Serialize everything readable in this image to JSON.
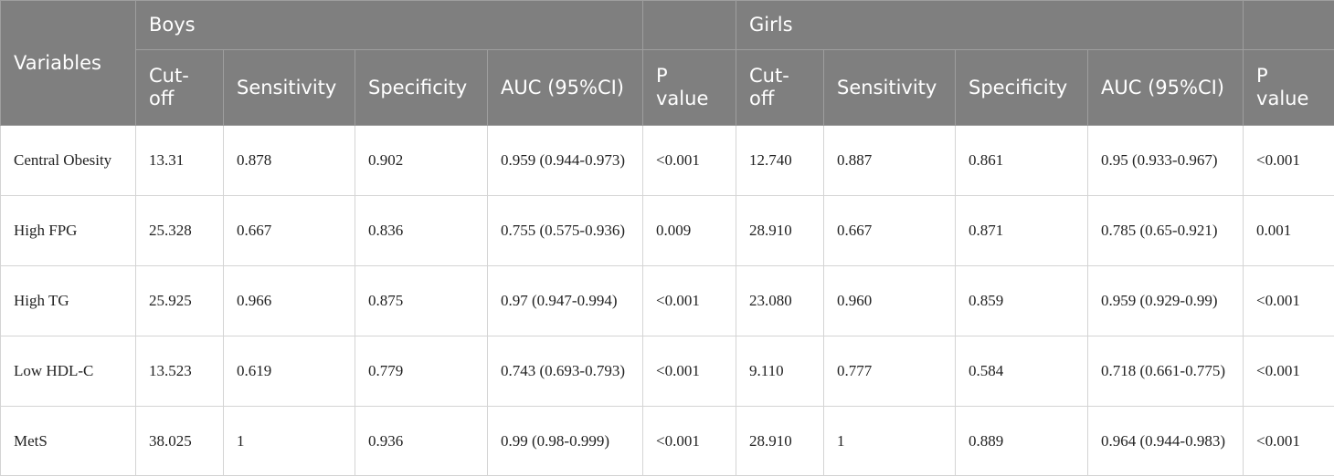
{
  "table": {
    "header": {
      "variables": "Variables",
      "group_boys": "Boys",
      "group_girls": "Girls",
      "columns": [
        "Cut-off",
        "Sensitivity",
        "Specificity",
        "AUC (95%CI)",
        "P value"
      ]
    },
    "rows": [
      {
        "variable": "Central Obesity",
        "boys": [
          "13.31",
          "0.878",
          "0.902",
          "0.959 (0.944-0.973)",
          "<0.001"
        ],
        "girls": [
          "12.740",
          "0.887",
          "0.861",
          "0.95 (0.933-0.967)",
          "<0.001"
        ]
      },
      {
        "variable": "High FPG",
        "boys": [
          "25.328",
          "0.667",
          "0.836",
          "0.755 (0.575-0.936)",
          "0.009"
        ],
        "girls": [
          "28.910",
          "0.667",
          "0.871",
          "0.785 (0.65-0.921)",
          "0.001"
        ]
      },
      {
        "variable": "High TG",
        "boys": [
          "25.925",
          "0.966",
          "0.875",
          "0.97 (0.947-0.994)",
          "<0.001"
        ],
        "girls": [
          "23.080",
          "0.960",
          "0.859",
          "0.959 (0.929-0.99)",
          "<0.001"
        ]
      },
      {
        "variable": "Low HDL-C",
        "boys": [
          "13.523",
          "0.619",
          "0.779",
          "0.743 (0.693-0.793)",
          "<0.001"
        ],
        "girls": [
          "9.110",
          "0.777",
          "0.584",
          "0.718 (0.661-0.775)",
          "<0.001"
        ]
      },
      {
        "variable": "MetS",
        "boys": [
          "38.025",
          "1",
          "0.936",
          "0.99 (0.98-0.999)",
          "<0.001"
        ],
        "girls": [
          "28.910",
          "1",
          "0.889",
          "0.964 (0.944-0.983)",
          "<0.001"
        ]
      }
    ]
  }
}
